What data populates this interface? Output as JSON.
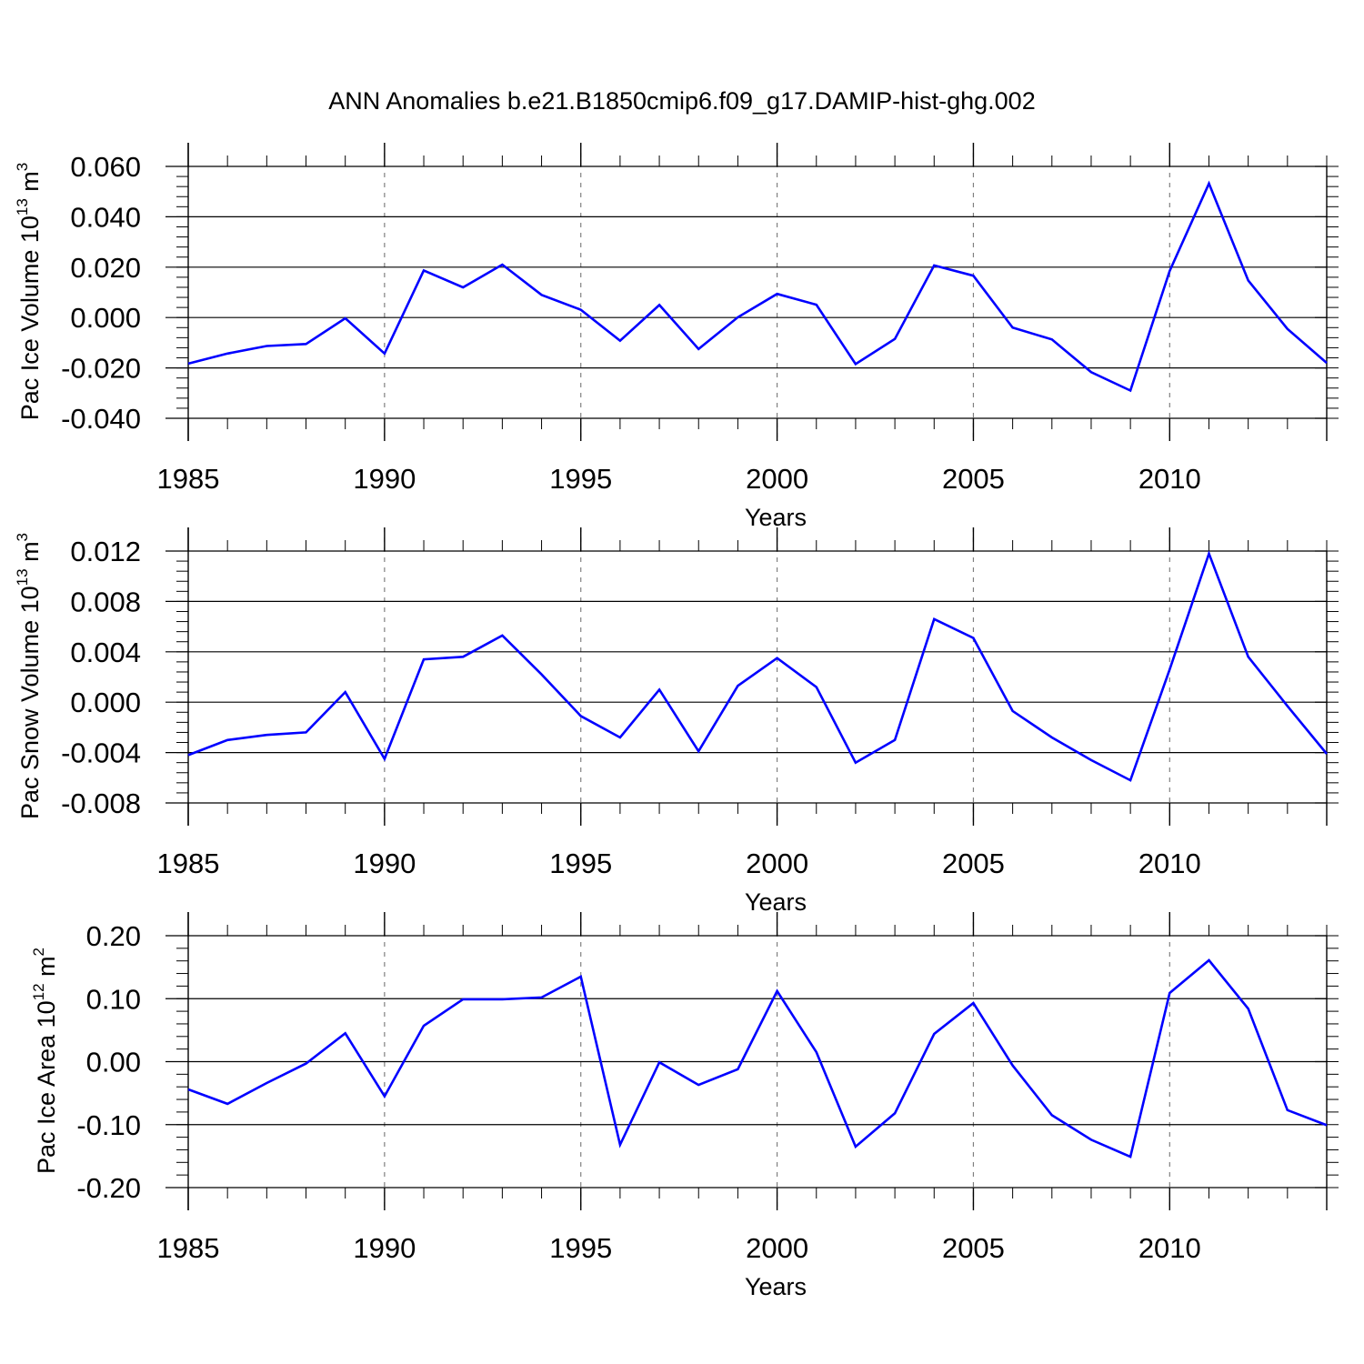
{
  "title": "ANN Anomalies b.e21.B1850cmip6.f09_g17.DAMIP-hist-ghg.002",
  "colors": {
    "line": "#0000ff",
    "axis": "#000000",
    "grid": "#808080",
    "background": "#ffffff"
  },
  "chart_data": [
    {
      "type": "line",
      "title": "ANN Anomalies b.e21.B1850cmip6.f09_g17.DAMIP-hist-ghg.002",
      "ylabel": {
        "text": "Pac Ice Volume 10",
        "exp": "13",
        "unit": " m",
        "unit_exp": "3"
      },
      "xlabel": "Years",
      "xlim": [
        1985,
        2014
      ],
      "ylim": [
        -0.04,
        0.06
      ],
      "yticks": [
        -0.04,
        -0.02,
        0.0,
        0.02,
        0.04,
        0.06
      ],
      "ytick_labels": [
        "-0.040",
        "-0.020",
        "0.000",
        "0.020",
        "0.040",
        "0.060"
      ],
      "xticks": [
        1985,
        1990,
        1995,
        2000,
        2005,
        2010
      ],
      "xtick_labels": [
        "1985",
        "1990",
        "1995",
        "2000",
        "2005",
        "2010"
      ],
      "grid": "vertical dashed at major x ticks",
      "series": [
        {
          "x": [
            1985,
            1986,
            1987,
            1988,
            1989,
            1990,
            1991,
            1992,
            1993,
            1994,
            1995,
            1996,
            1997,
            1998,
            1999,
            2000,
            2001,
            2002,
            2003,
            2004,
            2005,
            2006,
            2007,
            2008,
            2009,
            2010,
            2011,
            2012,
            2013,
            2014
          ],
          "values": [
            -0.0183,
            -0.0143,
            -0.0113,
            -0.0105,
            -0.0003,
            -0.0143,
            0.0187,
            0.012,
            0.021,
            0.009,
            0.0031,
            -0.0092,
            0.005,
            -0.0125,
            0.0001,
            0.0094,
            0.0051,
            -0.0185,
            -0.0085,
            0.0207,
            0.0166,
            -0.004,
            -0.0087,
            -0.0217,
            -0.029,
            0.0185,
            0.0532,
            0.0147,
            -0.0045,
            -0.018
          ]
        }
      ]
    },
    {
      "type": "line",
      "ylabel": {
        "text": "Pac Snow Volume 10",
        "exp": "13",
        "unit": " m",
        "unit_exp": "3"
      },
      "xlabel": "Years",
      "xlim": [
        1985,
        2014
      ],
      "ylim": [
        -0.009,
        0.012
      ],
      "yticks": [
        -0.008,
        -0.004,
        0.0,
        0.004,
        0.008,
        0.012
      ],
      "ytick_labels": [
        "-0.008",
        "-0.004",
        "0.000",
        "0.004",
        "0.008",
        "0.012"
      ],
      "xticks": [
        1985,
        1990,
        1995,
        2000,
        2005,
        2010
      ],
      "xtick_labels": [
        "1985",
        "1990",
        "1995",
        "2000",
        "2005",
        "2010"
      ],
      "grid": "vertical dashed at major x ticks",
      "series": [
        {
          "x": [
            1985,
            1986,
            1987,
            1988,
            1989,
            1990,
            1991,
            1992,
            1993,
            1994,
            1995,
            1996,
            1997,
            1998,
            1999,
            2000,
            2001,
            2002,
            2003,
            2004,
            2005,
            2006,
            2007,
            2008,
            2009,
            2010,
            2011,
            2012,
            2013,
            2014
          ],
          "values": [
            -0.0042,
            -0.003,
            -0.0026,
            -0.0024,
            0.0008,
            -0.0045,
            0.0034,
            0.0036,
            0.0053,
            0.0022,
            -0.0011,
            -0.0028,
            0.001,
            -0.0039,
            0.0013,
            0.0035,
            0.0012,
            -0.0048,
            -0.003,
            0.0066,
            0.0051,
            -0.0007,
            -0.0028,
            -0.0046,
            -0.0062,
            0.0026,
            0.0118,
            0.0036,
            -0.0003,
            -0.0041
          ]
        }
      ]
    },
    {
      "type": "line",
      "ylabel": {
        "text": "Pac Ice Area 10",
        "exp": "12",
        "unit": " m",
        "unit_exp": "2"
      },
      "xlabel": "Years",
      "xlim": [
        1985,
        2014
      ],
      "ylim": [
        -0.2,
        0.2
      ],
      "yticks": [
        -0.2,
        -0.1,
        0.0,
        0.1,
        0.2
      ],
      "ytick_labels": [
        "-0.20",
        "-0.10",
        "0.00",
        "0.10",
        "0.20"
      ],
      "xticks": [
        1985,
        1990,
        1995,
        2000,
        2005,
        2010
      ],
      "xtick_labels": [
        "1985",
        "1990",
        "1995",
        "2000",
        "2005",
        "2010"
      ],
      "grid": "vertical dashed at major x ticks",
      "series": [
        {
          "x": [
            1985,
            1986,
            1987,
            1988,
            1989,
            1990,
            1991,
            1992,
            1993,
            1994,
            1995,
            1996,
            1997,
            1998,
            1999,
            2000,
            2001,
            2002,
            2003,
            2004,
            2005,
            2006,
            2007,
            2008,
            2009,
            2010,
            2011,
            2012,
            2013,
            2014
          ],
          "values": [
            -0.044,
            -0.067,
            -0.034,
            -0.003,
            0.045,
            -0.055,
            0.057,
            0.099,
            0.099,
            0.102,
            0.135,
            -0.132,
            -0.001,
            -0.037,
            -0.012,
            0.112,
            0.015,
            -0.135,
            -0.082,
            0.044,
            0.093,
            -0.006,
            -0.085,
            -0.124,
            -0.151,
            0.109,
            0.161,
            0.084,
            -0.077,
            -0.101
          ]
        }
      ]
    }
  ]
}
